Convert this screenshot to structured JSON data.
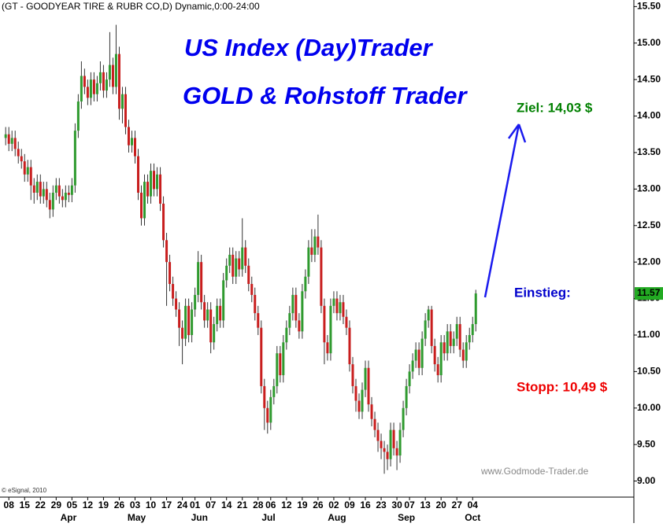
{
  "chart_data": {
    "type": "candlestick",
    "title": "(GT - GOODYEAR TIRE & RUBR CO,D) Dynamic,0:00-24:00",
    "annotations": {
      "headline1": "US Index (Day)Trader",
      "headline2": "GOLD & Rohstoff Trader",
      "target": "Ziel: 14,03 $",
      "entry": "Einstieg:",
      "stop": "Stopp: 10,49 $",
      "website": "www.Godmode-Trader.de",
      "copyright": "© eSignal, 2010"
    },
    "up_color": "#2f9a2f",
    "down_color": "#c81e1e",
    "wick_color": "#333333",
    "last_price": 11.57,
    "last_price_color": "#22aa22",
    "xlim": [
      -1.8,
      199.1
    ],
    "ylim": [
      8.78,
      15.59
    ],
    "yticks": [
      {
        "value": 9,
        "label": "9.00"
      },
      {
        "value": 9.5,
        "label": "9.50"
      },
      {
        "value": 10,
        "label": "10.00"
      },
      {
        "value": 10.5,
        "label": "10.50"
      },
      {
        "value": 11,
        "label": "11.00"
      },
      {
        "value": 11.5,
        "label": "11.50"
      },
      {
        "value": 12,
        "label": "12.00"
      },
      {
        "value": 12.5,
        "label": "12.50"
      },
      {
        "value": 13,
        "label": "13.00"
      },
      {
        "value": 13.5,
        "label": "13.50"
      },
      {
        "value": 14,
        "label": "14.00"
      },
      {
        "value": 14.5,
        "label": "14.50"
      },
      {
        "value": 15,
        "label": "15.00"
      },
      {
        "value": 15.5,
        "label": "15.50"
      }
    ],
    "xticks": [
      {
        "value": 1,
        "label": "08"
      },
      {
        "value": 6,
        "label": "15"
      },
      {
        "value": 11,
        "label": "22"
      },
      {
        "value": 16,
        "label": "29"
      },
      {
        "value": 21,
        "label": "05"
      },
      {
        "value": 26,
        "label": "12"
      },
      {
        "value": 31,
        "label": "19"
      },
      {
        "value": 36,
        "label": "26"
      },
      {
        "value": 41,
        "label": "03"
      },
      {
        "value": 46,
        "label": "10"
      },
      {
        "value": 51,
        "label": "17"
      },
      {
        "value": 56,
        "label": "24"
      },
      {
        "value": 60,
        "label": "01"
      },
      {
        "value": 65,
        "label": "07"
      },
      {
        "value": 70,
        "label": "14"
      },
      {
        "value": 75,
        "label": "21"
      },
      {
        "value": 80,
        "label": "28"
      },
      {
        "value": 84,
        "label": "06"
      },
      {
        "value": 89,
        "label": "12"
      },
      {
        "value": 94,
        "label": "19"
      },
      {
        "value": 99,
        "label": "26"
      },
      {
        "value": 104,
        "label": "02"
      },
      {
        "value": 109,
        "label": "09"
      },
      {
        "value": 114,
        "label": "16"
      },
      {
        "value": 119,
        "label": "23"
      },
      {
        "value": 124,
        "label": "30"
      },
      {
        "value": 128,
        "label": "07"
      },
      {
        "value": 133,
        "label": "13"
      },
      {
        "value": 138,
        "label": "20"
      },
      {
        "value": 143,
        "label": "27"
      },
      {
        "value": 148,
        "label": "04"
      }
    ],
    "month_labels": [
      {
        "value": 19.9,
        "label": "Apr"
      },
      {
        "value": 41.5,
        "label": "May"
      },
      {
        "value": 61.4,
        "label": "Jun"
      },
      {
        "value": 83.3,
        "label": "Jul"
      },
      {
        "value": 105,
        "label": "Aug"
      },
      {
        "value": 127,
        "label": "Sep"
      },
      {
        "value": 148,
        "label": "Oct"
      }
    ],
    "open": [
      13.7,
      13.75,
      13.62,
      13.7,
      13.55,
      13.45,
      13.38,
      13.2,
      13.3,
      13.05,
      12.95,
      13.1,
      12.9,
      13.0,
      12.85,
      12.72,
      12.95,
      13.05,
      12.9,
      12.85,
      12.95,
      12.92,
      13.05,
      13.8,
      14.2,
      14.55,
      14.4,
      14.25,
      14.5,
      14.3,
      14.45,
      14.6,
      14.35,
      14.5,
      14.7,
      14.4,
      14.85,
      14.1,
      14.3,
      13.85,
      13.6,
      13.7,
      13.45,
      12.95,
      12.6,
      13.1,
      12.9,
      13.25,
      13.0,
      13.2,
      12.8,
      12.3,
      12.0,
      11.7,
      11.5,
      11.35,
      11.1,
      10.95,
      11.4,
      11.0,
      11.35,
      11.55,
      12.0,
      11.45,
      11.2,
      11.35,
      10.9,
      11.15,
      11.4,
      11.2,
      11.75,
      11.95,
      12.1,
      11.8,
      12.05,
      11.9,
      12.2,
      11.95,
      11.7,
      11.55,
      11.3,
      11.1,
      10.3,
      10.0,
      9.8,
      10.15,
      10.3,
      10.75,
      10.45,
      10.9,
      11.1,
      11.3,
      11.55,
      11.2,
      11.05,
      11.6,
      11.8,
      12.2,
      12.1,
      12.35,
      12.2,
      11.4,
      10.9,
      10.75,
      11.4,
      11.5,
      11.3,
      11.45,
      11.25,
      11.1,
      10.6,
      10.3,
      10.1,
      9.95,
      10.25,
      10.55,
      10.05,
      9.85,
      9.7,
      9.55,
      9.45,
      9.4,
      9.3,
      9.7,
      9.45,
      9.35,
      9.7,
      10.0,
      10.3,
      10.5,
      10.65,
      10.8,
      10.55,
      10.95,
      11.2,
      11.35,
      10.85,
      10.6,
      10.45,
      10.9,
      10.75,
      11.05,
      10.85,
      10.95,
      11.15,
      10.8,
      10.65,
      10.9,
      11.0,
      11.15
    ],
    "high": [
      13.85,
      13.85,
      13.8,
      13.8,
      13.65,
      13.55,
      13.48,
      13.4,
      13.4,
      13.15,
      13.2,
      13.2,
      13.1,
      13.1,
      12.95,
      13.05,
      13.15,
      13.15,
      13.0,
      13.05,
      13.05,
      13.15,
      13.9,
      14.3,
      14.75,
      14.65,
      14.5,
      14.6,
      14.6,
      14.55,
      14.75,
      14.7,
      14.6,
      15.15,
      14.8,
      15.25,
      14.95,
      14.4,
      14.4,
      13.95,
      13.8,
      13.8,
      13.55,
      13.05,
      13.2,
      13.2,
      13.35,
      13.35,
      13.3,
      13.3,
      12.9,
      12.4,
      12.1,
      11.8,
      11.6,
      11.45,
      11.2,
      11.5,
      11.5,
      11.45,
      11.65,
      12.15,
      12.1,
      11.55,
      11.45,
      11.45,
      11.25,
      11.5,
      11.5,
      11.85,
      12.05,
      12.2,
      12.2,
      12.15,
      12.15,
      12.6,
      12.3,
      12.05,
      11.8,
      11.65,
      11.4,
      11.2,
      10.4,
      10.1,
      10.25,
      10.4,
      10.85,
      10.85,
      11.0,
      11.2,
      11.4,
      11.65,
      11.65,
      11.3,
      11.7,
      11.9,
      12.3,
      12.45,
      12.45,
      12.65,
      12.3,
      11.5,
      11.0,
      11.5,
      11.6,
      11.6,
      11.55,
      11.55,
      11.35,
      11.2,
      10.7,
      10.4,
      10.2,
      10.35,
      10.65,
      10.65,
      10.15,
      9.95,
      9.8,
      9.65,
      9.55,
      9.5,
      9.8,
      9.8,
      9.55,
      9.8,
      10.1,
      10.4,
      10.6,
      10.75,
      10.9,
      10.9,
      11.05,
      11.3,
      11.4,
      11.4,
      10.95,
      10.7,
      11.0,
      11.0,
      11.15,
      11.15,
      11.05,
      11.25,
      11.25,
      10.9,
      11.0,
      11.1,
      11.25,
      11.62
    ],
    "low": [
      13.6,
      13.52,
      13.52,
      13.45,
      13.35,
      13.28,
      13.1,
      13.1,
      12.85,
      12.8,
      12.85,
      12.8,
      12.8,
      12.75,
      12.6,
      12.62,
      12.85,
      12.8,
      12.75,
      12.75,
      12.82,
      12.82,
      12.95,
      13.7,
      14.1,
      14.3,
      14.15,
      14.15,
      14.2,
      14.2,
      14.35,
      14.25,
      14.25,
      14.4,
      14.3,
      14.3,
      13.95,
      13.9,
      13.75,
      13.5,
      13.5,
      13.35,
      12.85,
      12.5,
      12.5,
      12.8,
      12.8,
      12.9,
      12.9,
      12.7,
      12.2,
      11.4,
      11.6,
      11.4,
      11.25,
      10.85,
      10.6,
      10.85,
      10.9,
      10.9,
      11.25,
      11.45,
      11.35,
      11.1,
      11.1,
      10.75,
      10.8,
      11.05,
      11.1,
      11.1,
      11.65,
      11.85,
      11.7,
      11.7,
      11.8,
      11.8,
      11.85,
      11.6,
      11.45,
      11.2,
      11.0,
      10.2,
      9.7,
      9.65,
      9.7,
      10.05,
      10.2,
      10.35,
      10.35,
      10.8,
      11.0,
      11.2,
      11.1,
      10.95,
      10.95,
      11.5,
      11.7,
      12.0,
      12.0,
      12.1,
      11.3,
      10.6,
      10.65,
      10.65,
      11.3,
      11.2,
      11.2,
      11.15,
      11.0,
      10.5,
      10.2,
      9.95,
      9.85,
      9.85,
      10.15,
      9.95,
      9.75,
      9.6,
      9.4,
      9.3,
      9.1,
      9.15,
      9.2,
      9.35,
      9.15,
      9.25,
      9.6,
      9.9,
      10.2,
      10.4,
      10.55,
      10.45,
      10.45,
      10.85,
      11.1,
      10.75,
      10.5,
      10.35,
      10.35,
      10.65,
      10.65,
      10.75,
      10.75,
      10.85,
      10.7,
      10.55,
      10.55,
      10.8,
      10.9,
      11.05
    ],
    "close": [
      13.75,
      13.62,
      13.7,
      13.55,
      13.45,
      13.38,
      13.2,
      13.3,
      13.05,
      12.95,
      13.1,
      12.9,
      13.0,
      12.85,
      12.72,
      12.95,
      13.05,
      12.9,
      12.85,
      12.95,
      12.92,
      13.05,
      13.8,
      14.2,
      14.55,
      14.4,
      14.25,
      14.5,
      14.3,
      14.45,
      14.6,
      14.35,
      14.5,
      14.7,
      14.4,
      14.85,
      14.1,
      14.3,
      13.85,
      13.6,
      13.7,
      13.45,
      12.95,
      12.6,
      13.1,
      12.9,
      13.25,
      13.0,
      13.2,
      12.8,
      12.3,
      12.0,
      11.7,
      11.5,
      11.35,
      11.1,
      10.95,
      11.4,
      11.0,
      11.35,
      11.55,
      12.0,
      11.45,
      11.2,
      11.35,
      10.9,
      11.15,
      11.4,
      11.2,
      11.75,
      11.95,
      12.1,
      11.8,
      12.05,
      11.9,
      12.2,
      11.95,
      11.7,
      11.55,
      11.3,
      11.1,
      10.3,
      10.0,
      9.8,
      10.15,
      10.3,
      10.75,
      10.45,
      10.9,
      11.1,
      11.3,
      11.55,
      11.2,
      11.05,
      11.6,
      11.8,
      12.2,
      12.1,
      12.35,
      12.2,
      11.4,
      10.9,
      10.75,
      11.4,
      11.5,
      11.3,
      11.45,
      11.25,
      11.1,
      10.6,
      10.3,
      10.1,
      9.95,
      10.25,
      10.55,
      10.05,
      9.85,
      9.7,
      9.55,
      9.45,
      9.4,
      9.3,
      9.7,
      9.45,
      9.35,
      9.7,
      10.0,
      10.3,
      10.5,
      10.65,
      10.8,
      10.55,
      10.95,
      11.2,
      11.35,
      10.85,
      10.6,
      10.45,
      10.9,
      10.75,
      11.05,
      10.85,
      10.95,
      11.15,
      10.8,
      10.65,
      10.9,
      11.0,
      11.15,
      11.57
    ]
  }
}
